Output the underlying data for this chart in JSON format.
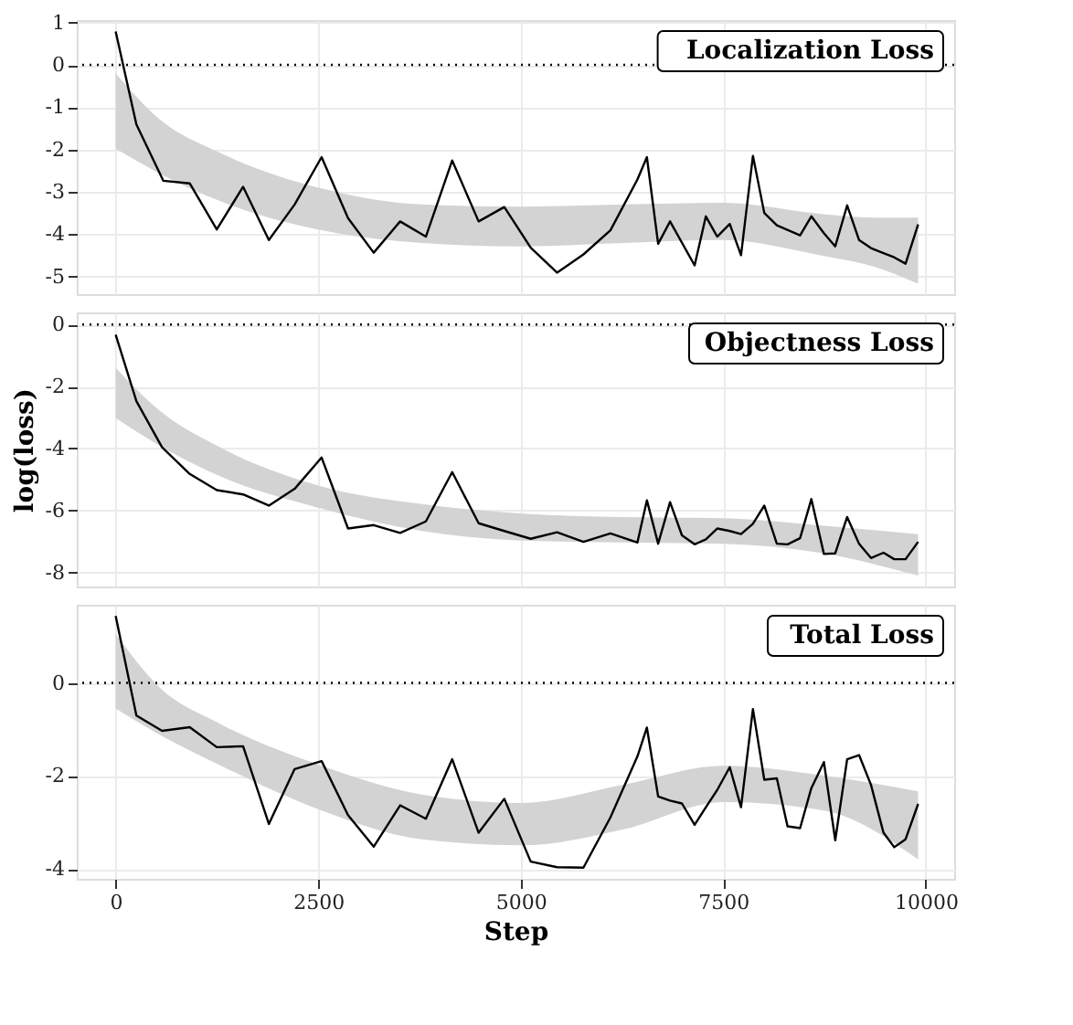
{
  "chart_data": [
    {
      "type": "line",
      "title": "Localization Loss",
      "xlim": [
        -480,
        10350
      ],
      "xticks": [
        0,
        2500,
        5000,
        7500,
        10000
      ],
      "ylim": [
        -5.42,
        1.06
      ],
      "yticks": [
        -5,
        -4,
        -3,
        -2,
        -1,
        0,
        1
      ],
      "grid": true,
      "tick_labels": "y",
      "line_style": "solid",
      "ref_lines": [
        {
          "axis": "y",
          "value": 0,
          "line_style": "dotted",
          "color": "#000000"
        }
      ],
      "series": [
        {
          "type": "area",
          "color": "#d3d3d3",
          "x": [
            0,
            527,
            1302,
            2542,
            3782,
            5022,
            6262,
            7502,
            8742,
            9362,
            9905
          ],
          "values": [
            null,
            null,
            null,
            null,
            null,
            null,
            null,
            null,
            null,
            null,
            null
          ],
          "lower": [
            -1.98,
            -2.55,
            -3.23,
            -3.91,
            -4.21,
            -4.29,
            -4.21,
            -4.14,
            -4.52,
            -4.77,
            -5.17
          ],
          "upper": [
            -0.2,
            -1.26,
            -2.09,
            -2.92,
            -3.3,
            -3.35,
            -3.3,
            -3.26,
            -3.53,
            -3.61,
            -3.61
          ]
        },
        {
          "type": "line",
          "color": "#000000",
          "x": [
            0,
            256,
            589,
            914,
            1248,
            1573,
            1891,
            2209,
            2542,
            2868,
            3185,
            3511,
            3829,
            4154,
            4480,
            4797,
            5123,
            5448,
            5774,
            6107,
            6440,
            6557,
            6696,
            6843,
            7146,
            7285,
            7425,
            7580,
            7719,
            7866,
            8006,
            8161,
            8448,
            8587,
            8742,
            8882,
            9029,
            9176,
            9323,
            9478,
            9610,
            9750,
            9905
          ],
          "values": [
            0.79,
            -1.41,
            -2.74,
            -2.8,
            -3.89,
            -2.88,
            -4.14,
            -3.3,
            -2.18,
            -3.62,
            -4.44,
            -3.7,
            -4.06,
            -2.26,
            -3.7,
            -3.36,
            -4.32,
            -4.91,
            -4.48,
            -3.91,
            -2.71,
            -2.18,
            -4.23,
            -3.7,
            -4.74,
            -3.58,
            -4.06,
            -3.76,
            -4.5,
            -2.15,
            -3.5,
            -3.79,
            -4.03,
            -3.58,
            -3.98,
            -4.29,
            -3.32,
            -4.14,
            -4.33,
            -4.45,
            -4.55,
            -4.7,
            -3.77
          ]
        }
      ]
    },
    {
      "type": "line",
      "title": "Objectness Loss",
      "ylabel": "log(loss)",
      "xlim": [
        -480,
        10350
      ],
      "xticks": [
        0,
        2500,
        5000,
        7500,
        10000
      ],
      "ylim": [
        -8.45,
        0.39
      ],
      "yticks": [
        -8,
        -6,
        -4,
        -2,
        0
      ],
      "grid": true,
      "tick_labels": "y",
      "line_style": "solid",
      "ref_lines": [
        {
          "axis": "y",
          "value": 0,
          "line_style": "dotted",
          "color": "#000000"
        }
      ],
      "series": [
        {
          "type": "area",
          "color": "#d3d3d3",
          "x": [
            0,
            527,
            1302,
            2542,
            3782,
            5022,
            6262,
            7502,
            8742,
            9905
          ],
          "values": [
            null,
            null,
            null,
            null,
            null,
            null,
            null,
            null,
            null,
            null
          ],
          "lower": [
            -3.01,
            -3.88,
            -4.91,
            -5.94,
            -6.66,
            -6.97,
            -7.03,
            -7.07,
            -7.38,
            -8.1
          ],
          "upper": [
            -1.4,
            -2.74,
            -3.98,
            -5.22,
            -5.79,
            -6.1,
            -6.21,
            -6.25,
            -6.49,
            -6.76
          ]
        },
        {
          "type": "line",
          "color": "#000000",
          "x": [
            0,
            256,
            573,
            914,
            1248,
            1573,
            1891,
            2209,
            2542,
            2868,
            3185,
            3511,
            3829,
            4154,
            4480,
            4797,
            5123,
            5448,
            5774,
            6107,
            6440,
            6557,
            6696,
            6843,
            6990,
            7146,
            7285,
            7425,
            7580,
            7719,
            7866,
            8006,
            8161,
            8293,
            8448,
            8587,
            8742,
            8882,
            9029,
            9176,
            9323,
            9478,
            9610,
            9750,
            9905
          ],
          "values": [
            -0.33,
            -2.47,
            -3.96,
            -4.82,
            -5.34,
            -5.48,
            -5.84,
            -5.3,
            -4.29,
            -6.58,
            -6.47,
            -6.72,
            -6.35,
            -4.76,
            -6.41,
            -6.66,
            -6.91,
            -6.7,
            -7.01,
            -6.74,
            -7.03,
            -5.67,
            -7.07,
            -5.73,
            -6.8,
            -7.09,
            -6.93,
            -6.58,
            -6.66,
            -6.76,
            -6.43,
            -5.84,
            -7.07,
            -7.09,
            -6.89,
            -5.63,
            -7.4,
            -7.38,
            -6.21,
            -7.07,
            -7.53,
            -7.36,
            -7.57,
            -7.57,
            -7.01
          ]
        }
      ]
    },
    {
      "type": "line",
      "title": "Total Loss",
      "xlabel": "Step",
      "xlim": [
        -480,
        10350
      ],
      "xticks": [
        0,
        2500,
        5000,
        7500,
        10000
      ],
      "ylim": [
        -4.21,
        1.68
      ],
      "yticks": [
        -4,
        -2,
        0
      ],
      "grid": true,
      "line_style": "solid",
      "ref_lines": [
        {
          "axis": "y",
          "value": 0,
          "line_style": "dotted",
          "color": "#000000"
        }
      ],
      "series": [
        {
          "type": "area",
          "color": "#d3d3d3",
          "x": [
            0,
            527,
            1302,
            2542,
            3782,
            5022,
            6262,
            7502,
            8742,
            9905
          ],
          "values": [
            null,
            null,
            null,
            null,
            null,
            null,
            null,
            null,
            null,
            null
          ],
          "lower": [
            -0.55,
            -1.1,
            -1.78,
            -2.74,
            -3.36,
            -3.49,
            -3.15,
            -2.56,
            -2.74,
            -3.79
          ],
          "upper": [
            1.05,
            -0.07,
            -0.89,
            -1.78,
            -2.4,
            -2.58,
            -2.19,
            -1.78,
            -1.99,
            -2.33
          ]
        },
        {
          "type": "line",
          "color": "#000000",
          "x": [
            0,
            256,
            573,
            914,
            1248,
            1573,
            1891,
            2209,
            2542,
            2868,
            3185,
            3511,
            3829,
            4154,
            4480,
            4797,
            5123,
            5448,
            5774,
            6107,
            6440,
            6557,
            6696,
            6843,
            6990,
            7146,
            7285,
            7425,
            7580,
            7719,
            7866,
            8006,
            8161,
            8293,
            8448,
            8587,
            8742,
            8882,
            9029,
            9176,
            9323,
            9478,
            9610,
            9750,
            9905
          ],
          "values": [
            1.44,
            -0.7,
            -1.03,
            -0.95,
            -1.38,
            -1.36,
            -3.03,
            -1.85,
            -1.68,
            -2.84,
            -3.52,
            -2.63,
            -2.92,
            -1.64,
            -3.22,
            -2.49,
            -3.84,
            -3.96,
            -3.97,
            -2.89,
            -1.58,
            -0.96,
            -2.44,
            -2.53,
            -2.59,
            -3.05,
            -2.67,
            -2.3,
            -1.81,
            -2.67,
            -0.56,
            -2.08,
            -2.05,
            -3.08,
            -3.12,
            -2.26,
            -1.7,
            -3.38,
            -1.64,
            -1.55,
            -2.19,
            -3.22,
            -3.53,
            -3.36,
            -2.6
          ]
        }
      ]
    }
  ]
}
